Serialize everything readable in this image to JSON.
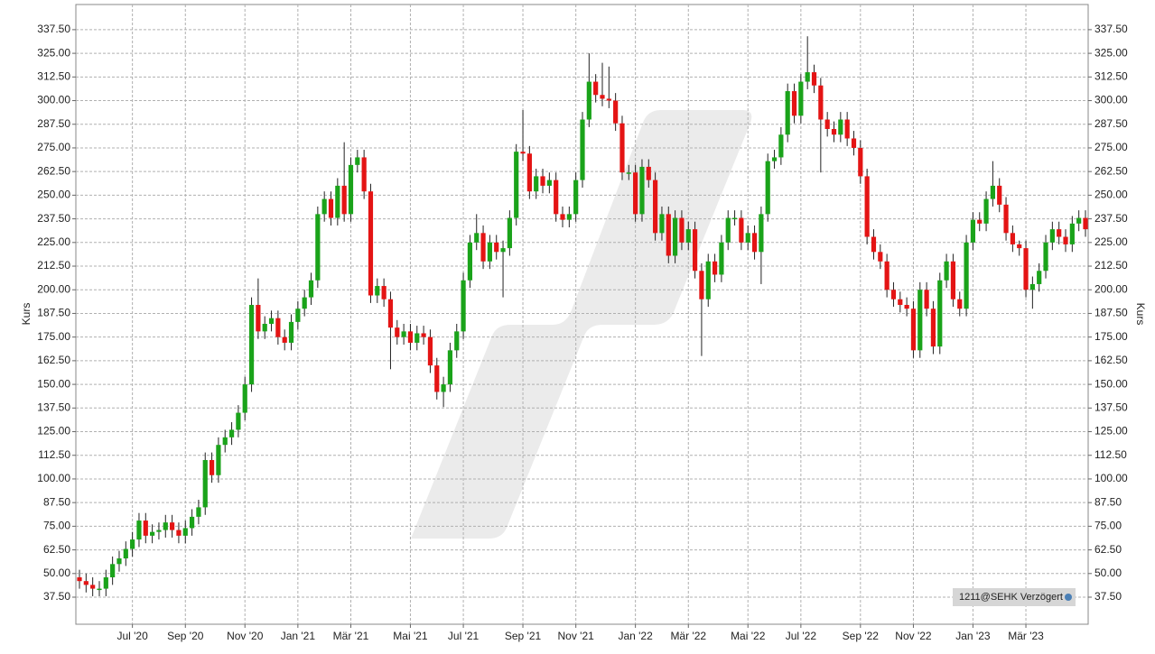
{
  "chart_data": {
    "type": "candlestick",
    "y_label": "Kurs",
    "badge": "1211@SEHK Verzögert",
    "up_color": "#1aa31a",
    "down_color": "#e41414",
    "grid": true,
    "ylim": [
      23.2,
      350.8
    ],
    "yticks": [
      {
        "value": 37.5,
        "label": "37.50"
      },
      {
        "value": 50,
        "label": "50.00"
      },
      {
        "value": 62.5,
        "label": "62.50"
      },
      {
        "value": 75,
        "label": "75.00"
      },
      {
        "value": 87.5,
        "label": "87.50"
      },
      {
        "value": 100,
        "label": "100.00"
      },
      {
        "value": 112.5,
        "label": "112.50"
      },
      {
        "value": 125,
        "label": "125.00"
      },
      {
        "value": 137.5,
        "label": "137.50"
      },
      {
        "value": 150,
        "label": "150.00"
      },
      {
        "value": 162.5,
        "label": "162.50"
      },
      {
        "value": 175,
        "label": "175.00"
      },
      {
        "value": 187.5,
        "label": "187.50"
      },
      {
        "value": 200,
        "label": "200.00"
      },
      {
        "value": 212.5,
        "label": "212.50"
      },
      {
        "value": 225,
        "label": "225.00"
      },
      {
        "value": 237.5,
        "label": "237.50"
      },
      {
        "value": 250,
        "label": "250.00"
      },
      {
        "value": 262.5,
        "label": "262.50"
      },
      {
        "value": 275,
        "label": "275.00"
      },
      {
        "value": 287.5,
        "label": "287.50"
      },
      {
        "value": 300,
        "label": "300.00"
      },
      {
        "value": 312.5,
        "label": "312.50"
      },
      {
        "value": 325,
        "label": "325.00"
      },
      {
        "value": 337.5,
        "label": "337.50"
      }
    ],
    "categories": [
      null,
      null,
      null,
      null,
      null,
      null,
      null,
      null,
      "Jul '20",
      null,
      null,
      null,
      null,
      null,
      null,
      null,
      "Sep '20",
      null,
      null,
      null,
      null,
      null,
      null,
      null,
      null,
      "Nov '20",
      null,
      null,
      null,
      null,
      null,
      null,
      null,
      "Jan '21",
      null,
      null,
      null,
      null,
      null,
      null,
      null,
      "Mär '21",
      null,
      null,
      null,
      null,
      null,
      null,
      null,
      null,
      "Mai '21",
      null,
      null,
      null,
      null,
      null,
      null,
      null,
      "Jul '21",
      null,
      null,
      null,
      null,
      null,
      null,
      null,
      null,
      "Sep '21",
      null,
      null,
      null,
      null,
      null,
      null,
      null,
      "Nov '21",
      null,
      null,
      null,
      null,
      null,
      null,
      null,
      null,
      "Jan '22",
      null,
      null,
      null,
      null,
      null,
      null,
      null,
      "Mär '22",
      null,
      null,
      null,
      null,
      null,
      null,
      null,
      null,
      "Mai '22",
      null,
      null,
      null,
      null,
      null,
      null,
      null,
      "Jul '22",
      null,
      null,
      null,
      null,
      null,
      null,
      null,
      null,
      "Sep '22",
      null,
      null,
      null,
      null,
      null,
      null,
      null,
      "Nov '22",
      null,
      null,
      null,
      null,
      null,
      null,
      null,
      null,
      "Jan '23",
      null,
      null,
      null,
      null,
      null,
      null,
      null,
      "Mär '23",
      null,
      null,
      null,
      null,
      null,
      null,
      null,
      null,
      null
    ],
    "open": [
      48,
      46,
      44,
      42,
      42,
      48,
      55,
      58,
      63,
      68,
      78,
      70,
      72,
      73,
      77,
      73,
      70,
      74,
      80,
      85,
      110,
      102,
      118,
      122,
      126,
      135,
      150,
      192,
      178,
      182,
      185,
      175,
      172,
      183,
      190,
      196,
      205,
      240,
      248,
      238,
      255,
      240,
      266,
      270,
      252,
      197,
      202,
      195,
      180,
      175,
      178,
      172,
      177,
      175,
      160,
      146,
      150,
      168,
      178,
      205,
      225,
      230,
      215,
      225,
      220,
      222,
      238,
      273,
      272,
      252,
      260,
      255,
      258,
      240,
      237,
      240,
      258,
      290,
      310,
      303,
      301,
      300,
      288,
      262,
      262,
      240,
      265,
      258,
      230,
      240,
      218,
      238,
      225,
      232,
      210,
      195,
      215,
      208,
      225,
      238,
      238,
      225,
      230,
      220,
      240,
      268,
      270,
      282,
      305,
      292,
      310,
      315,
      308,
      290,
      285,
      282,
      290,
      280,
      275,
      260,
      228,
      220,
      215,
      200,
      195,
      192,
      190,
      168,
      200,
      190,
      170,
      205,
      215,
      195,
      190,
      225,
      237,
      235,
      248,
      255,
      245,
      230,
      224,
      222,
      200,
      203,
      210,
      225,
      232,
      228,
      224,
      235,
      238
    ],
    "high": [
      52,
      50,
      48,
      46,
      52,
      59,
      62,
      67,
      72,
      82,
      82,
      76,
      77,
      81,
      81,
      77,
      78,
      84,
      89,
      114,
      114,
      122,
      126,
      130,
      139,
      154,
      196,
      206,
      186,
      189,
      189,
      179,
      187,
      194,
      200,
      209,
      244,
      252,
      252,
      259,
      278,
      270,
      274,
      274,
      256,
      206,
      206,
      199,
      184,
      182,
      182,
      181,
      181,
      179,
      164,
      154,
      172,
      182,
      209,
      229,
      240,
      234,
      229,
      229,
      226,
      242,
      277,
      295,
      276,
      264,
      264,
      262,
      262,
      244,
      244,
      262,
      294,
      325,
      314,
      320,
      318,
      304,
      292,
      266,
      266,
      269,
      269,
      262,
      244,
      244,
      242,
      242,
      236,
      236,
      214,
      219,
      219,
      229,
      242,
      242,
      242,
      234,
      234,
      244,
      272,
      274,
      286,
      309,
      309,
      314,
      334,
      319,
      312,
      294,
      289,
      294,
      294,
      284,
      279,
      264,
      232,
      224,
      219,
      204,
      199,
      196,
      194,
      204,
      204,
      194,
      209,
      219,
      219,
      199,
      229,
      241,
      241,
      252,
      268,
      259,
      249,
      234,
      226,
      226,
      207,
      214,
      229,
      236,
      236,
      232,
      239,
      242,
      242
    ],
    "low": [
      42,
      40,
      38,
      38,
      38,
      44,
      51,
      54,
      59,
      64,
      66,
      66,
      68,
      69,
      69,
      66,
      66,
      70,
      76,
      81,
      98,
      98,
      114,
      118,
      122,
      131,
      146,
      174,
      174,
      178,
      171,
      168,
      168,
      179,
      186,
      192,
      201,
      236,
      234,
      234,
      236,
      236,
      262,
      248,
      193,
      193,
      191,
      158,
      171,
      171,
      168,
      168,
      171,
      156,
      142,
      138,
      146,
      164,
      174,
      201,
      221,
      211,
      211,
      216,
      196,
      218,
      234,
      268,
      248,
      248,
      251,
      251,
      236,
      233,
      233,
      236,
      254,
      286,
      299,
      297,
      296,
      284,
      258,
      258,
      236,
      236,
      254,
      226,
      226,
      214,
      214,
      221,
      221,
      206,
      165,
      191,
      204,
      204,
      221,
      234,
      221,
      221,
      216,
      203,
      236,
      264,
      266,
      278,
      288,
      288,
      306,
      304,
      262,
      281,
      278,
      278,
      276,
      271,
      256,
      224,
      216,
      211,
      196,
      191,
      188,
      186,
      164,
      164,
      186,
      166,
      166,
      201,
      191,
      186,
      186,
      221,
      231,
      231,
      244,
      241,
      226,
      220,
      218,
      196,
      190,
      199,
      206,
      221,
      224,
      220,
      220,
      231,
      228
    ],
    "close": [
      46,
      44,
      42,
      42,
      48,
      55,
      58,
      63,
      68,
      78,
      70,
      72,
      73,
      77,
      73,
      70,
      74,
      80,
      85,
      110,
      102,
      118,
      122,
      126,
      135,
      150,
      192,
      178,
      182,
      185,
      175,
      172,
      183,
      190,
      196,
      205,
      240,
      248,
      238,
      255,
      240,
      266,
      270,
      252,
      197,
      202,
      195,
      180,
      175,
      178,
      172,
      177,
      175,
      160,
      146,
      150,
      168,
      178,
      205,
      225,
      230,
      215,
      225,
      220,
      222,
      238,
      273,
      272,
      252,
      260,
      255,
      258,
      240,
      237,
      240,
      258,
      290,
      310,
      303,
      301,
      300,
      288,
      262,
      262,
      240,
      265,
      258,
      230,
      240,
      218,
      238,
      225,
      232,
      210,
      195,
      215,
      208,
      225,
      238,
      238,
      225,
      230,
      220,
      240,
      268,
      270,
      282,
      305,
      292,
      310,
      315,
      308,
      290,
      285,
      282,
      290,
      280,
      275,
      260,
      228,
      220,
      215,
      200,
      195,
      192,
      190,
      168,
      200,
      190,
      170,
      205,
      215,
      195,
      190,
      225,
      237,
      235,
      248,
      255,
      245,
      230,
      224,
      222,
      200,
      203,
      210,
      225,
      232,
      228,
      224,
      235,
      238,
      232
    ]
  }
}
